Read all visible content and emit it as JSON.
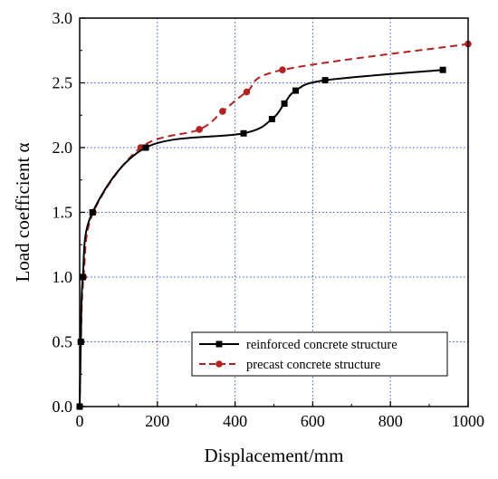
{
  "chart_data": {
    "type": "line",
    "xlabel": "Displacement/mm",
    "ylabel": "Load coefficient α",
    "xlim": [
      0,
      1000
    ],
    "ylim": [
      0,
      3.0
    ],
    "x_ticks": [
      0,
      200,
      400,
      600,
      800,
      1000
    ],
    "y_ticks": [
      0.0,
      0.5,
      1.0,
      1.5,
      2.0,
      2.5,
      3.0
    ],
    "x_tick_labels": [
      "0",
      "200",
      "400",
      "600",
      "800",
      "1000"
    ],
    "y_tick_labels": [
      "0.0",
      "0.5",
      "1.0",
      "1.5",
      "2.0",
      "2.5",
      "3.0"
    ],
    "grid": "dotted blue vertical and horizontal lines at major ticks",
    "legend_position": "bottom-right",
    "series": [
      {
        "name": "reinforced concrete structure",
        "color": "#000000",
        "line_style": "solid",
        "marker": "square",
        "points": [
          [
            0,
            0
          ],
          [
            3,
            0.5
          ],
          [
            8,
            1.0
          ],
          [
            33,
            1.5
          ],
          [
            170,
            2.0
          ],
          [
            422,
            2.11
          ],
          [
            495,
            2.22
          ],
          [
            527,
            2.34
          ],
          [
            556,
            2.44
          ],
          [
            632,
            2.52
          ],
          [
            935,
            2.6
          ]
        ]
      },
      {
        "name": "precast concrete structure",
        "color": "#b22222",
        "line_style": "dashed",
        "marker": "circle",
        "points": [
          [
            0,
            0
          ],
          [
            3,
            0.5
          ],
          [
            10,
            1.0
          ],
          [
            35,
            1.5
          ],
          [
            157,
            2.0
          ],
          [
            308,
            2.14
          ],
          [
            368,
            2.28
          ],
          [
            430,
            2.43
          ],
          [
            522,
            2.6
          ],
          [
            1000,
            2.8
          ]
        ]
      }
    ]
  }
}
